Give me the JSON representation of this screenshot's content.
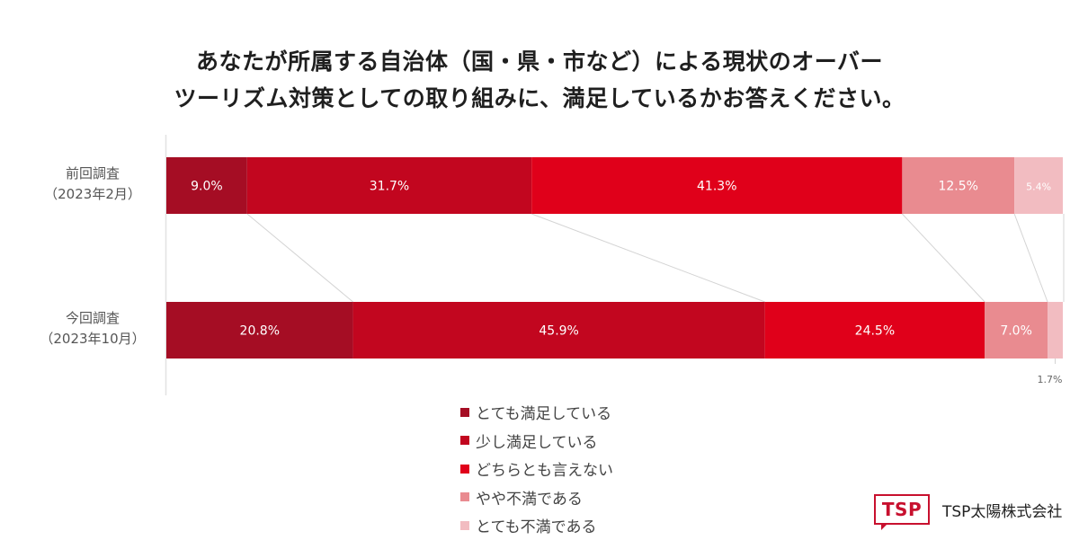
{
  "title_lines": [
    "あなたが所属する自治体（国・県・市など）による現状のオーバー",
    "ツーリズム対策としての取り組みに、満足しているかお答えください。"
  ],
  "brand": {
    "logo_text": "TSP",
    "name": "TSP太陽株式会社"
  },
  "chart_data": {
    "type": "bar",
    "orientation": "horizontal",
    "stacked": true,
    "percent_stacked": true,
    "title": "あなたが所属する自治体（国・県・市など）による現状のオーバーツーリズム対策としての取り組みに、満足しているかお答えください。",
    "rows": [
      {
        "label_line1": "前回調査",
        "label_line2": "（2023年2月）"
      },
      {
        "label_line1": "今回調査",
        "label_line2": "（2023年10月）"
      }
    ],
    "series": [
      {
        "name": "とても満足している",
        "color": "#a50d24",
        "values": [
          9.0,
          20.8
        ],
        "labels": [
          "9.0%",
          "20.8%"
        ]
      },
      {
        "name": "少し満足している",
        "color": "#c2061f",
        "values": [
          31.7,
          45.9
        ],
        "labels": [
          "31.7%",
          "45.9%"
        ]
      },
      {
        "name": "どちらとも言えない",
        "color": "#e0001a",
        "values": [
          41.3,
          24.5
        ],
        "labels": [
          "41.3%",
          "24.5%"
        ]
      },
      {
        "name": "やや不満である",
        "color": "#e98b90",
        "values": [
          12.5,
          7.0
        ],
        "labels": [
          "12.5%",
          "7.0%"
        ]
      },
      {
        "name": "とても不満である",
        "color": "#f2bcc1",
        "values": [
          5.4,
          1.7
        ],
        "labels": [
          "5.4%",
          "1.7%"
        ]
      }
    ],
    "legend_position": "bottom",
    "grid": false
  }
}
